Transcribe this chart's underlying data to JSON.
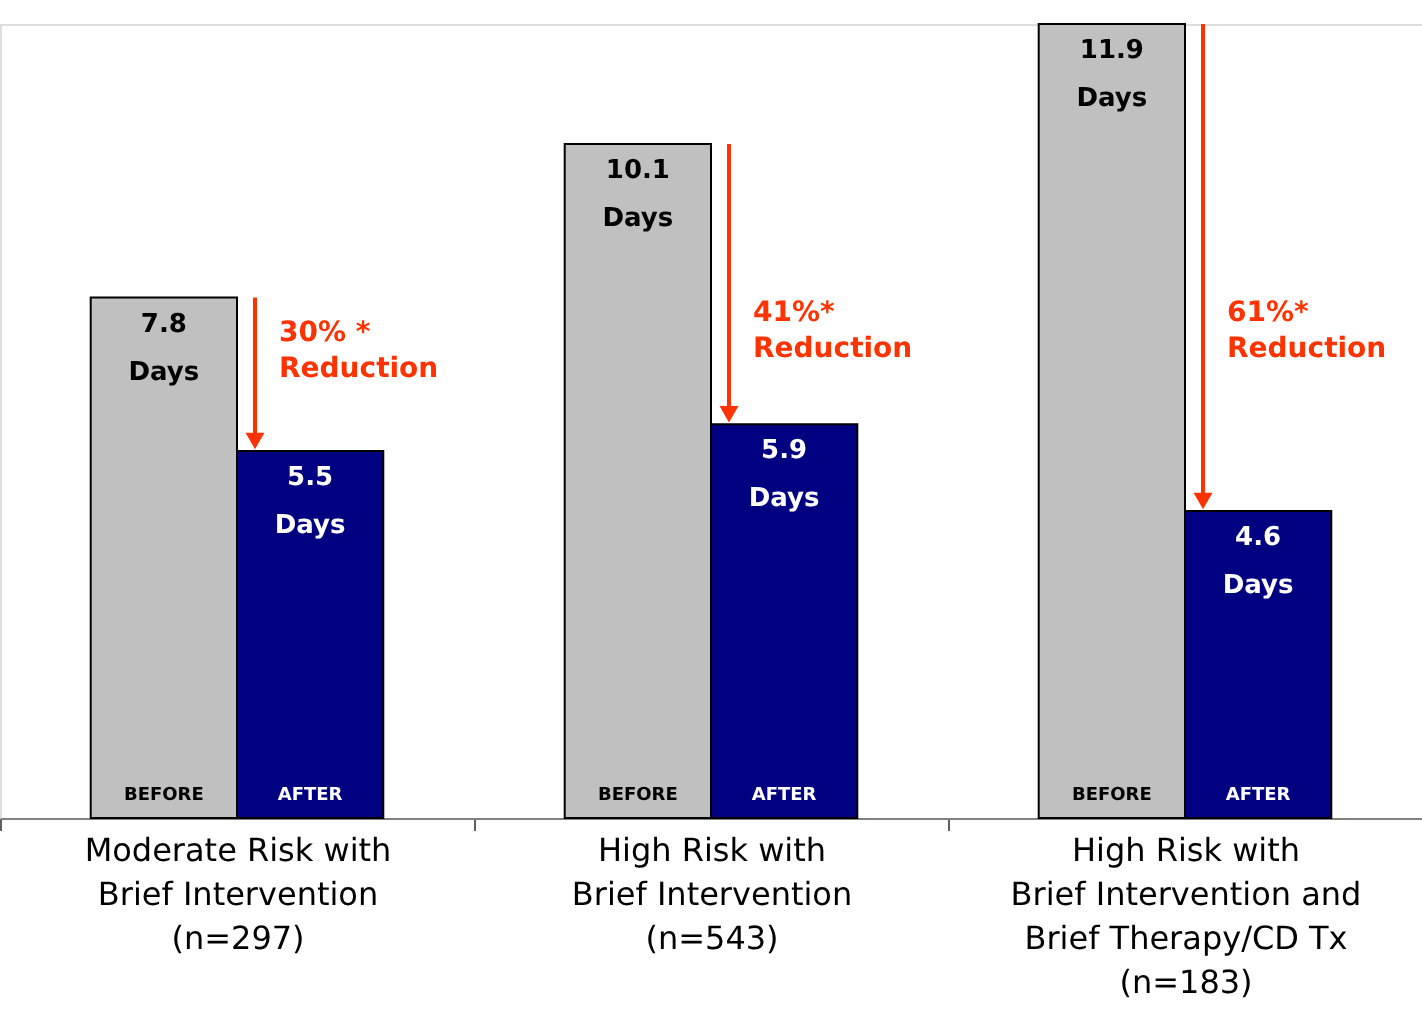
{
  "chart_data": {
    "type": "bar",
    "categories": [
      "Moderate Risk with\nBrief Intervention\n(n=297)",
      "High Risk with\nBrief Intervention\n(n=543)",
      "High Risk with\nBrief Intervention and\nBrief Therapy/CD Tx\n(n=183)"
    ],
    "series": [
      {
        "name": "BEFORE",
        "color": "#c0c0c0",
        "values": [
          7.8,
          10.1,
          11.9
        ],
        "value_labels": [
          "7.8\nDays",
          "10.1\nDays",
          "11.9\nDays"
        ]
      },
      {
        "name": "AFTER",
        "color": "#000080",
        "values": [
          5.5,
          5.9,
          4.6
        ],
        "value_labels": [
          "5.5\nDays",
          "5.9\nDays",
          "4.6\nDays"
        ]
      }
    ],
    "annotations": [
      {
        "text": "30% *\nReduction",
        "x": "Moderate Risk with\nBrief Intervention\n(n=297)",
        "y": 7.0
      },
      {
        "text": "41%*\nReduction",
        "x": "High Risk with\nBrief Intervention\n(n=543)",
        "y": 7.3
      },
      {
        "text": "61%*\nReduction",
        "x": "High Risk with\nBrief Intervention and\nBrief Therapy/CD Tx\n(n=183)",
        "y": 7.3
      }
    ]
  }
}
